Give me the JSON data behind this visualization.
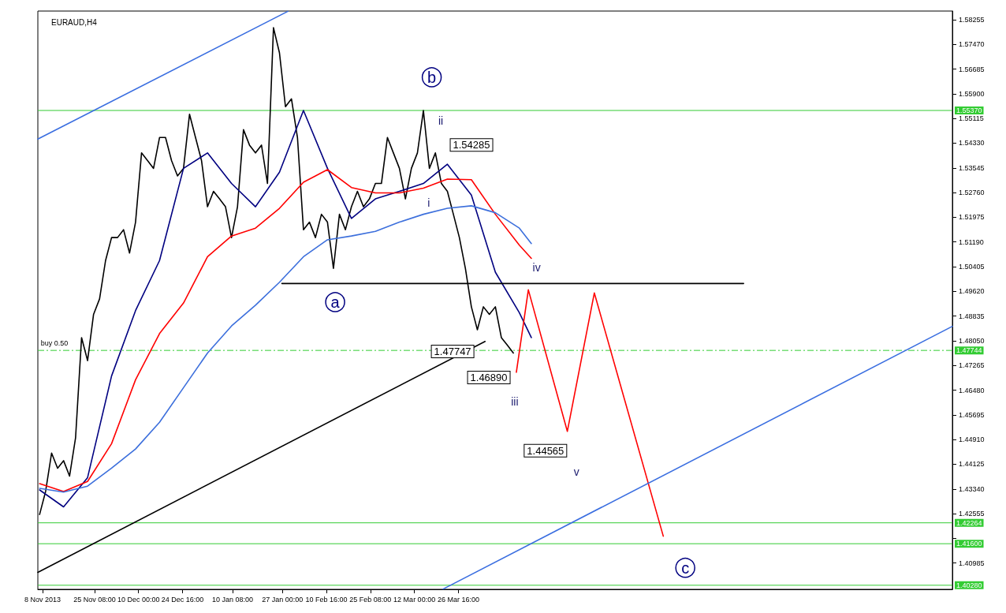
{
  "chart_data": {
    "type": "line",
    "title": "EURAUD,H4",
    "grid": false,
    "marker": "none",
    "line_style": "solid",
    "xlim": [
      "2013-11-06T10:00",
      "2014-09-07T10:00"
    ],
    "ylim": [
      1.4015,
      1.5853
    ],
    "xticks": [
      {
        "value": "2013-11-08",
        "label": "8 Nov 2013"
      },
      {
        "value": "2013-11-25T08:00",
        "label": "25 Nov 08:00"
      },
      {
        "value": "2013-12-10T00:00",
        "label": "10 Dec 00:00"
      },
      {
        "value": "2013-12-24T16:00",
        "label": "24 Dec 16:00"
      },
      {
        "value": "2014-01-10T08:00",
        "label": "10 Jan 08:00"
      },
      {
        "value": "2014-01-27T00:00",
        "label": "27 Jan 00:00"
      },
      {
        "value": "2014-02-10T16:00",
        "label": "10 Feb 16:00"
      },
      {
        "value": "2014-02-25T08:00",
        "label": "25 Feb 08:00"
      },
      {
        "value": "2014-03-12T00:00",
        "label": "12 Mar 00:00"
      },
      {
        "value": "2014-03-26T16:00",
        "label": "26 Mar 16:00"
      }
    ],
    "yticks": [
      {
        "value": 1.58255,
        "label": "1.58255"
      },
      {
        "value": 1.5747,
        "label": "1.57470"
      },
      {
        "value": 1.56685,
        "label": "1.56685"
      },
      {
        "value": 1.559,
        "label": "1.55900"
      },
      {
        "value": 1.55115,
        "label": "1.55115"
      },
      {
        "value": 1.5433,
        "label": "1.54330"
      },
      {
        "value": 1.53545,
        "label": "1.53545"
      },
      {
        "value": 1.5276,
        "label": "1.52760"
      },
      {
        "value": 1.51975,
        "label": "1.51975"
      },
      {
        "value": 1.5119,
        "label": "1.51190"
      },
      {
        "value": 1.50405,
        "label": "1.50405"
      },
      {
        "value": 1.4962,
        "label": "1.49620"
      },
      {
        "value": 1.48835,
        "label": "1.48835"
      },
      {
        "value": 1.4805,
        "label": "1.48050"
      },
      {
        "value": 1.47265,
        "label": "1.47265"
      },
      {
        "value": 1.4648,
        "label": "1.46480"
      },
      {
        "value": 1.45695,
        "label": "1.45695"
      },
      {
        "value": 1.4491,
        "label": "1.44910"
      },
      {
        "value": 1.44125,
        "label": "1.44125"
      },
      {
        "value": 1.4334,
        "label": "1.43340"
      },
      {
        "value": 1.42555,
        "label": "1.42555"
      },
      {
        "value": 1.4177,
        "label": null
      },
      {
        "value": 1.40985,
        "label": "1.40985"
      }
    ],
    "x": [
      "2013-11-07",
      "2013-11-09",
      "2013-11-11",
      "2013-11-13",
      "2013-11-15",
      "2013-11-17",
      "2013-11-19",
      "2013-11-21",
      "2013-11-23",
      "2013-11-25",
      "2013-11-27",
      "2013-11-29",
      "2013-12-01",
      "2013-12-03",
      "2013-12-05",
      "2013-12-07",
      "2013-12-09",
      "2013-12-11",
      "2013-12-13",
      "2013-12-15",
      "2013-12-17",
      "2013-12-19",
      "2013-12-21",
      "2013-12-23",
      "2013-12-25",
      "2013-12-27",
      "2013-12-29",
      "2013-12-31",
      "2014-01-02",
      "2014-01-04",
      "2014-01-06",
      "2014-01-08",
      "2014-01-10",
      "2014-01-12",
      "2014-01-14",
      "2014-01-16",
      "2014-01-18",
      "2014-01-20",
      "2014-01-22",
      "2014-01-24",
      "2014-01-26",
      "2014-01-28",
      "2014-01-30",
      "2014-02-01",
      "2014-02-03",
      "2014-02-05",
      "2014-02-07",
      "2014-02-09",
      "2014-02-11",
      "2014-02-13",
      "2014-02-15",
      "2014-02-17",
      "2014-02-19",
      "2014-02-21",
      "2014-02-23",
      "2014-02-25",
      "2014-02-27",
      "2014-03-01",
      "2014-03-03",
      "2014-03-05",
      "2014-03-07",
      "2014-03-09",
      "2014-03-11",
      "2014-03-13",
      "2014-03-15",
      "2014-03-17",
      "2014-03-19",
      "2014-03-21",
      "2014-03-23",
      "2014-03-25",
      "2014-03-27",
      "2014-03-29",
      "2014-03-31",
      "2014-04-02",
      "2014-04-04",
      "2014-04-06",
      "2014-04-08",
      "2014-04-10",
      "2014-04-12",
      "2014-04-14"
    ],
    "series": [
      {
        "color": "#000000",
        "values": [
          1.4253,
          1.4326,
          1.4448,
          1.44,
          1.4424,
          1.4375,
          1.4497,
          1.4815,
          1.4742,
          1.4889,
          1.4938,
          1.506,
          1.5133,
          1.5133,
          1.5158,
          1.5084,
          1.5182,
          1.5402,
          1.5378,
          1.5353,
          1.5451,
          1.5451,
          1.5378,
          1.5329,
          1.5353,
          1.5525,
          1.5451,
          1.5378,
          1.5231,
          1.528,
          1.5256,
          1.5231,
          1.5133,
          1.5231,
          1.5476,
          1.5427,
          1.5402,
          1.5427,
          1.5305,
          1.58,
          1.572,
          1.5549,
          1.5574,
          1.5451,
          1.5158,
          1.5182,
          1.5133,
          1.5207,
          1.5182,
          1.5035,
          1.5207,
          1.5158,
          1.5231,
          1.528,
          1.5231,
          1.5256,
          1.5305,
          1.5305,
          1.5451,
          1.5402,
          1.5353,
          1.5256,
          1.5353,
          1.5402,
          1.5537,
          1.5353,
          1.5402,
          1.5305,
          1.528,
          1.5207,
          1.5133,
          1.5035,
          1.4913,
          1.484,
          1.4913,
          1.4889,
          1.4913,
          1.4815,
          1.4791,
          1.4766
        ]
      },
      {
        "color": "#000080",
        "x": [
          "2013-11-07",
          "2013-11-15",
          "2013-11-23",
          "2013-12-01",
          "2013-12-09",
          "2013-12-17",
          "2013-12-25",
          "2014-01-02",
          "2014-01-10",
          "2014-01-18",
          "2014-01-26",
          "2014-02-03",
          "2014-02-11",
          "2014-02-19",
          "2014-02-27",
          "2014-03-07",
          "2014-03-15",
          "2014-03-23",
          "2014-03-31",
          "2014-04-08",
          "2014-04-16",
          "2014-04-20"
        ],
        "values": [
          1.4331,
          1.4277,
          1.437,
          1.4693,
          1.4901,
          1.506,
          1.5353,
          1.5402,
          1.5305,
          1.5231,
          1.5341,
          1.5537,
          1.5353,
          1.5194,
          1.5256,
          1.528,
          1.5305,
          1.5366,
          1.5268,
          1.5023,
          1.4894,
          1.4815
        ]
      },
      {
        "color": "#ff0000",
        "x": [
          "2013-11-07",
          "2013-11-15",
          "2013-11-23",
          "2013-12-01",
          "2013-12-09",
          "2013-12-17",
          "2013-12-25",
          "2014-01-02",
          "2014-01-10",
          "2014-01-18",
          "2014-01-26",
          "2014-02-03",
          "2014-02-11",
          "2014-02-19",
          "2014-02-27",
          "2014-03-07",
          "2014-03-15",
          "2014-03-23",
          "2014-03-31",
          "2014-04-08",
          "2014-04-16",
          "2014-04-20"
        ],
        "values": [
          1.4351,
          1.4326,
          1.4358,
          1.4478,
          1.4681,
          1.4828,
          1.4925,
          1.5072,
          1.5138,
          1.5163,
          1.5226,
          1.5309,
          1.5349,
          1.5292,
          1.5275,
          1.5275,
          1.529,
          1.5319,
          1.5317,
          1.5207,
          1.5109,
          1.5067
        ]
      },
      {
        "color": "#3c6fdc",
        "x": [
          "2013-11-07",
          "2013-11-15",
          "2013-11-23",
          "2013-12-01",
          "2013-12-09",
          "2013-12-17",
          "2013-12-25",
          "2014-01-02",
          "2014-01-10",
          "2014-01-18",
          "2014-01-26",
          "2014-02-03",
          "2014-02-11",
          "2014-02-19",
          "2014-02-27",
          "2014-03-07",
          "2014-03-15",
          "2014-03-23",
          "2014-03-31",
          "2014-04-08",
          "2014-04-16",
          "2014-04-20"
        ],
        "values": [
          1.4336,
          1.4324,
          1.4343,
          1.44,
          1.4461,
          1.4546,
          1.4656,
          1.4766,
          1.4852,
          1.4918,
          1.4991,
          1.5072,
          1.5126,
          1.5138,
          1.5153,
          1.5182,
          1.5207,
          1.5226,
          1.5234,
          1.5212,
          1.5163,
          1.5114
        ]
      },
      {
        "color": "#ff0000",
        "x": [
          "2014-04-15",
          "2014-04-19",
          "2014-05-02",
          "2014-05-11",
          "2014-06-03"
        ],
        "values": [
          1.4705,
          1.4967,
          1.4517,
          1.4957,
          1.4184
        ]
      },
      {
        "color": "#3a6ee0",
        "x": [
          "2013-11-06T10:00",
          "2014-01-28T19:00"
        ],
        "values": [
          1.5446,
          1.5852
        ]
      },
      {
        "color": "#3a6ee0",
        "x": [
          "2014-03-21T14:00",
          "2014-09-07T10:00"
        ],
        "values": [
          1.4016,
          1.4851
        ]
      },
      {
        "color": "#000000",
        "x": [
          "2013-11-06T10:00",
          "2014-04-04T14:00"
        ],
        "values": [
          1.4069,
          1.4803
        ]
      },
      {
        "color": "#000000",
        "x": [
          "2014-01-26T19:00",
          "2014-06-29T19:00"
        ],
        "values": [
          1.4987,
          1.4987
        ]
      }
    ],
    "ref_lines": [
      {
        "axis": "y",
        "value": 1.5537,
        "label": "1.55370",
        "color": "#33cc33"
      },
      {
        "axis": "y",
        "value": 1.47744,
        "label": "1.47744",
        "color": "#33cc33",
        "line_style": "dashed"
      },
      {
        "axis": "y",
        "value": 1.42264,
        "label": "1.42264",
        "color": "#33cc33"
      },
      {
        "axis": "y",
        "value": 1.416,
        "label": "1.41600",
        "color": "#33cc33"
      },
      {
        "axis": "y",
        "value": 1.4028,
        "label": "1.40280",
        "color": "#33cc33"
      }
    ],
    "annotations": [
      "buy 0.50",
      "1.54285",
      "1.47747",
      "1.46890",
      "1.44565",
      "b",
      "a",
      "c",
      "ii",
      "i",
      "iv",
      "iii",
      "v"
    ]
  }
}
